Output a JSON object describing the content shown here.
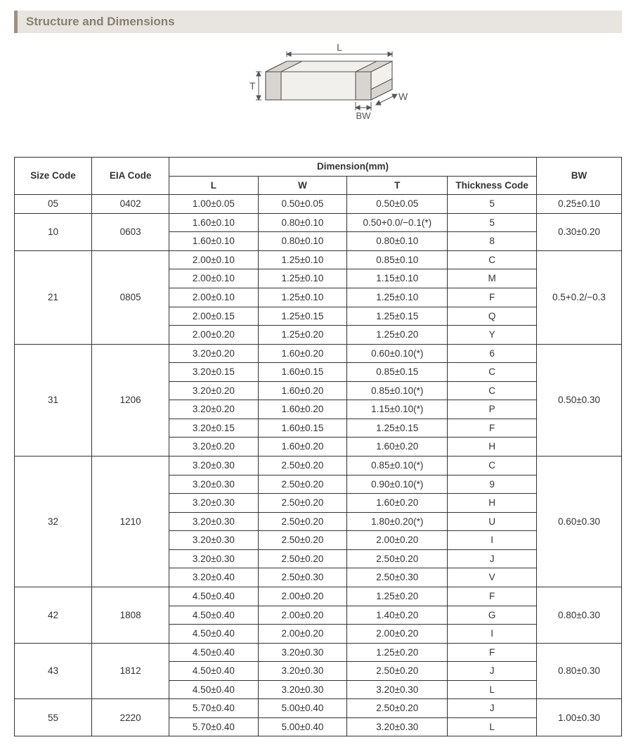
{
  "header": {
    "title": "Structure and Dimensions"
  },
  "diagram": {
    "labels": {
      "L": "L",
      "W": "W",
      "T": "T",
      "BW": "BW"
    },
    "fill": "#f2f0ed",
    "stroke": "#555555",
    "label_color": "#555555",
    "label_fontsize": 14
  },
  "table": {
    "header": {
      "size_code": "Size Code",
      "eia_code": "EIA Code",
      "dimension_group": "Dimension(mm)",
      "L": "L",
      "W": "W",
      "T": "T",
      "thickness_code": "Thickness  Code",
      "BW": "BW"
    },
    "groups": [
      {
        "size_code": "05",
        "eia_code": "0402",
        "bw": "0.25±0.10",
        "rows": [
          {
            "L": "1.00±0.05",
            "W": "0.50±0.05",
            "T": "0.50±0.05",
            "tc": "5"
          }
        ]
      },
      {
        "size_code": "10",
        "eia_code": "0603",
        "bw": "0.30±0.20",
        "rows": [
          {
            "L": "1.60±0.10",
            "W": "0.80±0.10",
            "T": "0.50+0.0/−0.1(*)",
            "tc": "5"
          },
          {
            "L": "1.60±0.10",
            "W": "0.80±0.10",
            "T": "0.80±0.10",
            "tc": "8"
          }
        ]
      },
      {
        "size_code": "21",
        "eia_code": "0805",
        "bw": "0.5+0.2/−0.3",
        "rows": [
          {
            "L": "2.00±0.10",
            "W": "1.25±0.10",
            "T": "0.85±0.10",
            "tc": "C"
          },
          {
            "L": "2.00±0.10",
            "W": "1.25±0.10",
            "T": "1.15±0.10",
            "tc": "M"
          },
          {
            "L": "2.00±0.10",
            "W": "1.25±0.10",
            "T": "1.25±0.10",
            "tc": "F"
          },
          {
            "L": "2.00±0.15",
            "W": "1.25±0.15",
            "T": "1.25±0.15",
            "tc": "Q"
          },
          {
            "L": "2.00±0.20",
            "W": "1.25±0.20",
            "T": "1.25±0.20",
            "tc": "Y"
          }
        ]
      },
      {
        "size_code": "31",
        "eia_code": "1206",
        "bw": "0.50±0.30",
        "rows": [
          {
            "L": "3.20±0.20",
            "W": "1.60±0.20",
            "T": "0.60±0.10(*)",
            "tc": "6"
          },
          {
            "L": "3.20±0.15",
            "W": "1.60±0.15",
            "T": "0.85±0.15",
            "tc": "C"
          },
          {
            "L": "3.20±0.20",
            "W": "1.60±0.20",
            "T": "0.85±0.10(*)",
            "tc": "C"
          },
          {
            "L": "3.20±0.20",
            "W": "1.60±0.20",
            "T": "1.15±0.10(*)",
            "tc": "P"
          },
          {
            "L": "3.20±0.15",
            "W": "1.60±0.15",
            "T": "1.25±0.15",
            "tc": "F"
          },
          {
            "L": "3.20±0.20",
            "W": "1.60±0.20",
            "T": "1.60±0.20",
            "tc": "H"
          }
        ]
      },
      {
        "size_code": "32",
        "eia_code": "1210",
        "bw": "0.60±0.30",
        "rows": [
          {
            "L": "3.20±0.30",
            "W": "2.50±0.20",
            "T": "0.85±0.10(*)",
            "tc": "C"
          },
          {
            "L": "3.20±0.30",
            "W": "2.50±0.20",
            "T": "0.90±0.10(*)",
            "tc": "9"
          },
          {
            "L": "3.20±0.30",
            "W": "2.50±0.20",
            "T": "1.60±0.20",
            "tc": "H"
          },
          {
            "L": "3.20±0.30",
            "W": "2.50±0.20",
            "T": "1.80±0.20(*)",
            "tc": "U"
          },
          {
            "L": "3.20±0.30",
            "W": "2.50±0.20",
            "T": "2.00±0.20",
            "tc": "I"
          },
          {
            "L": "3.20±0.30",
            "W": "2.50±0.20",
            "T": "2.50±0.20",
            "tc": "J"
          },
          {
            "L": "3.20±0.40",
            "W": "2.50±0.30",
            "T": "2.50±0.30",
            "tc": "V"
          }
        ]
      },
      {
        "size_code": "42",
        "eia_code": "1808",
        "bw": "0.80±0.30",
        "rows": [
          {
            "L": "4.50±0.40",
            "W": "2.00±0.20",
            "T": "1.25±0.20",
            "tc": "F"
          },
          {
            "L": "4.50±0.40",
            "W": "2.00±0.20",
            "T": "1.40±0.20",
            "tc": "G"
          },
          {
            "L": "4.50±0.40",
            "W": "2.00±0.20",
            "T": "2.00±0.20",
            "tc": "I"
          }
        ]
      },
      {
        "size_code": "43",
        "eia_code": "1812",
        "bw": "0.80±0.30",
        "rows": [
          {
            "L": "4.50±0.40",
            "W": "3.20±0.30",
            "T": "1.25±0.20",
            "tc": "F"
          },
          {
            "L": "4.50±0.40",
            "W": "3.20±0.30",
            "T": "2.50±0.20",
            "tc": "J"
          },
          {
            "L": "4.50±0.40",
            "W": "3.20±0.30",
            "T": "3.20±0.30",
            "tc": "L"
          }
        ]
      },
      {
        "size_code": "55",
        "eia_code": "2220",
        "bw": "1.00±0.30",
        "rows": [
          {
            "L": "5.70±0.40",
            "W": "5.00±0.40",
            "T": "2.50±0.20",
            "tc": "J"
          },
          {
            "L": "5.70±0.40",
            "W": "5.00±0.40",
            "T": "3.20±0.30",
            "tc": "L"
          }
        ]
      }
    ]
  }
}
